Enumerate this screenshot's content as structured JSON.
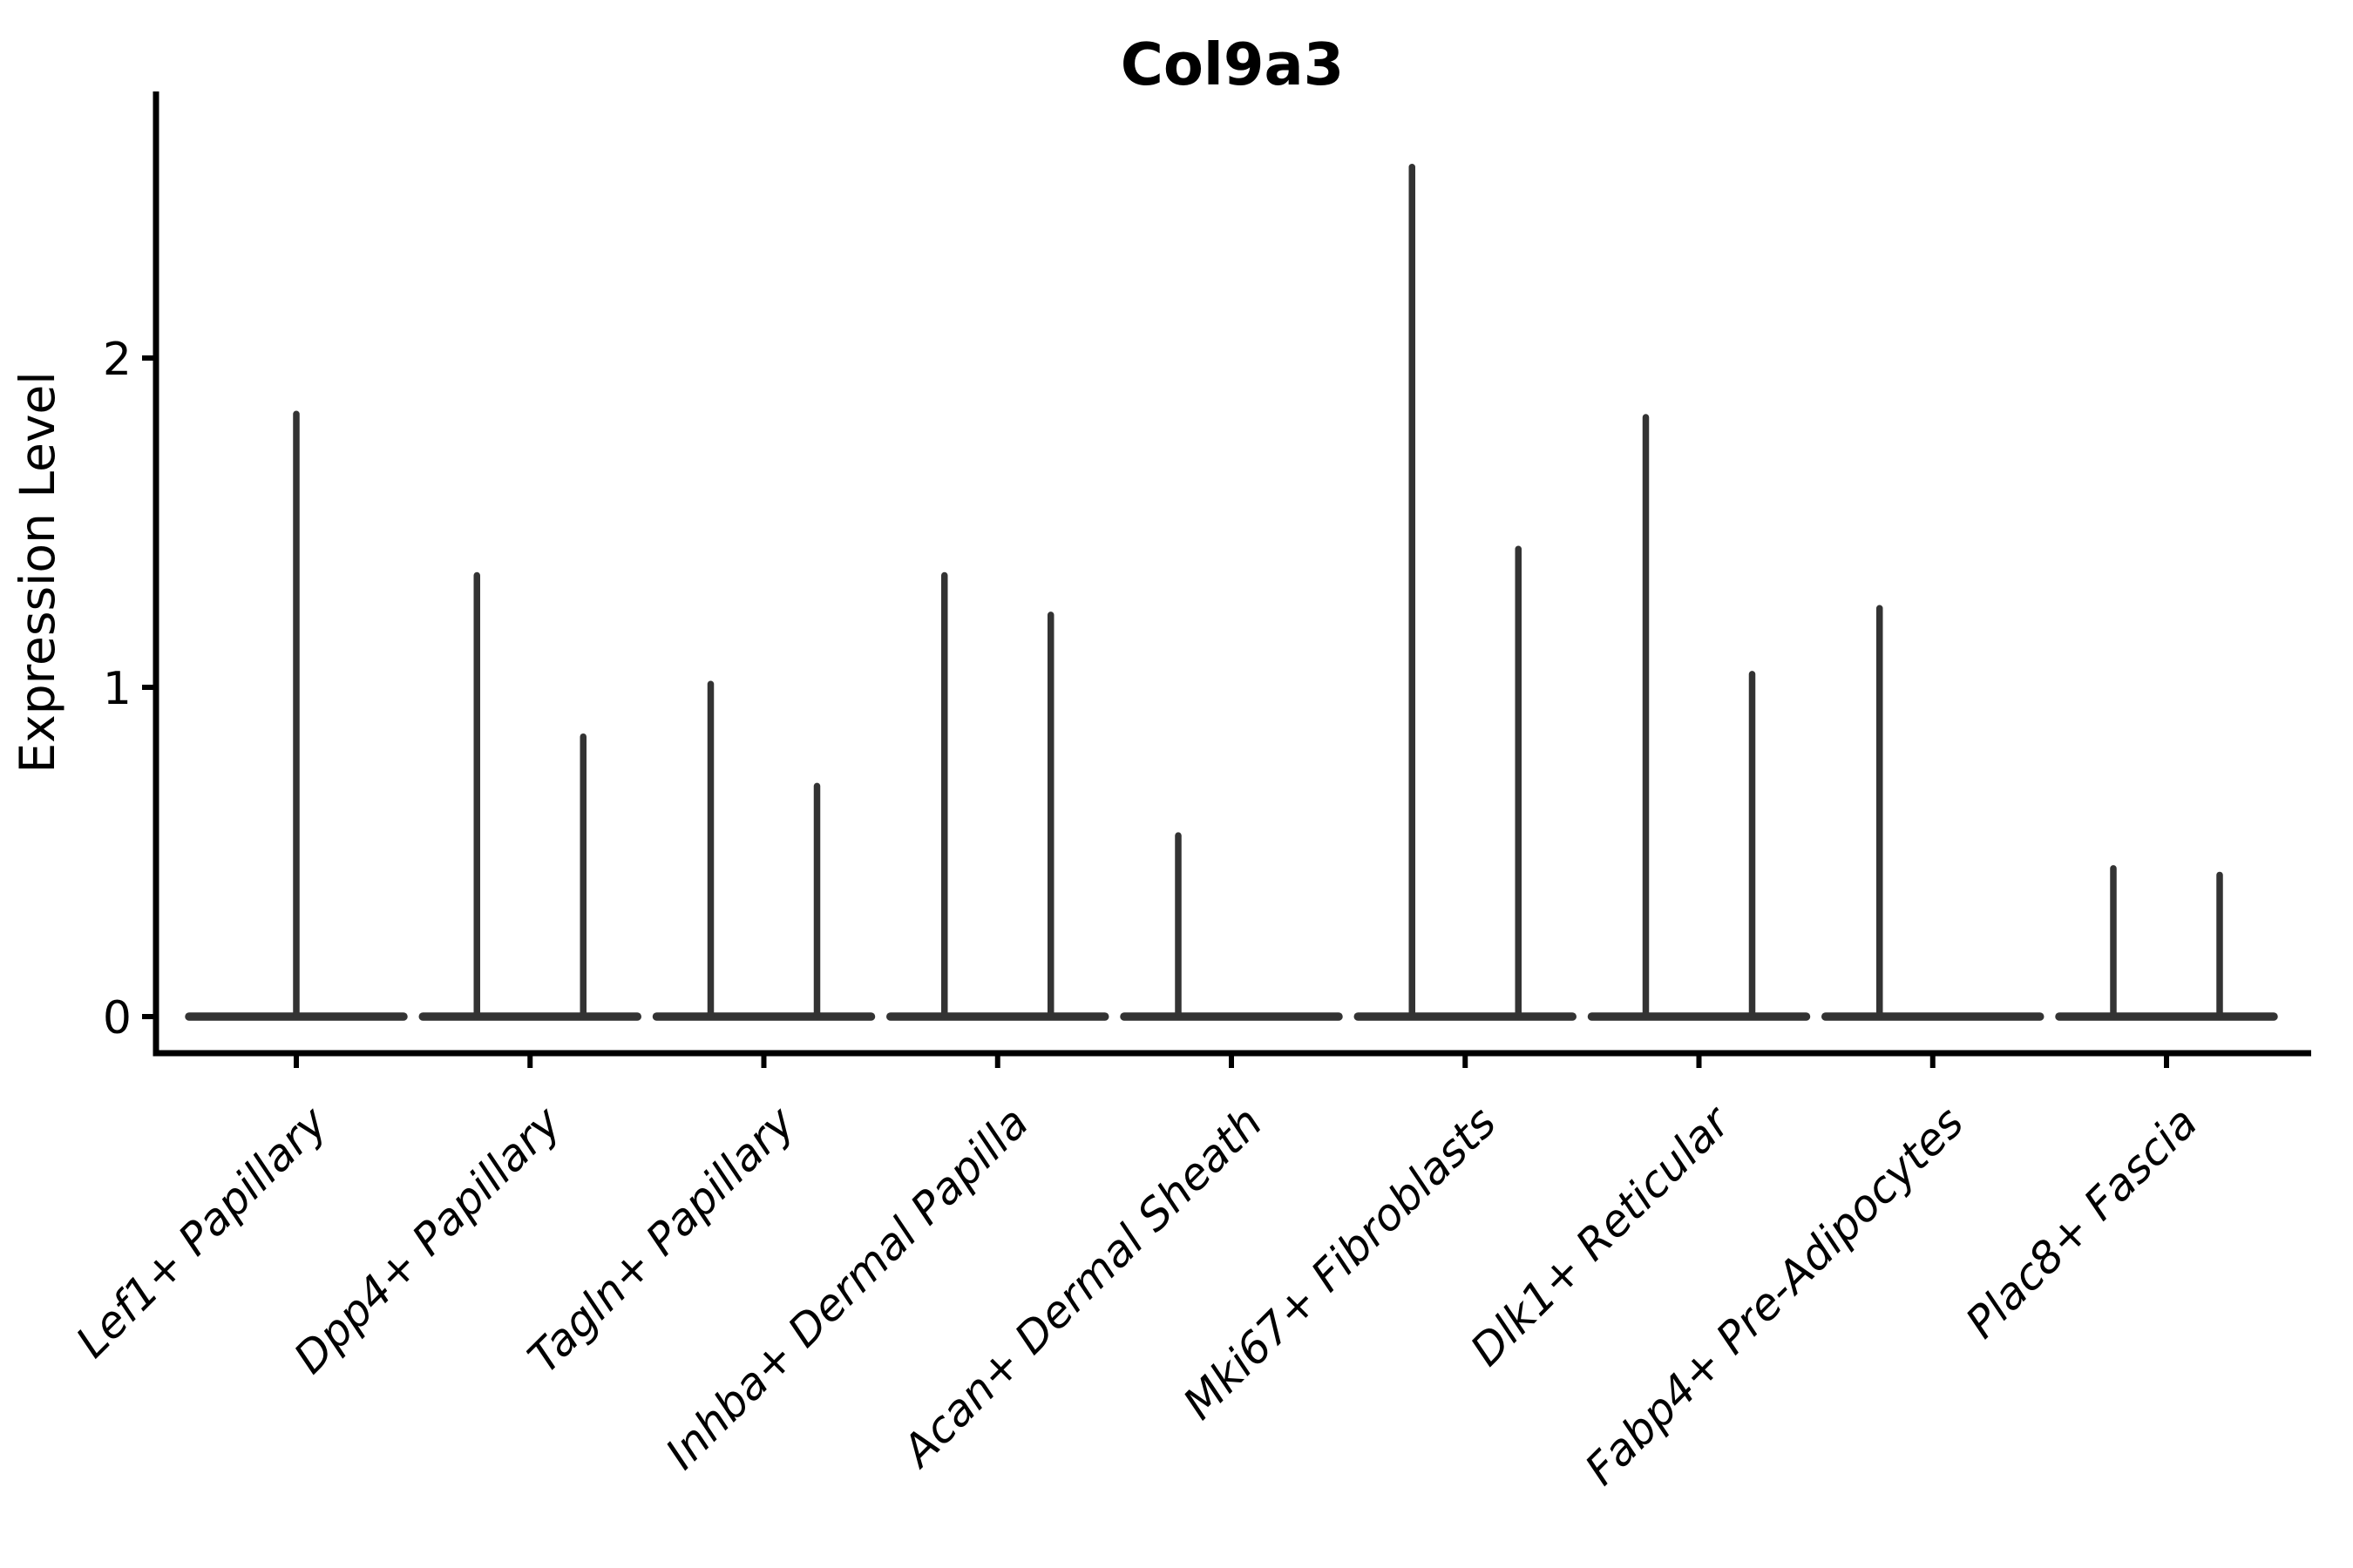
{
  "chart_data": {
    "type": "violin",
    "title": "Col9a3",
    "ylabel": "Expression Level",
    "xlabel": "",
    "ylim": [
      -0.11,
      2.81
    ],
    "yticks": [
      0,
      1,
      2
    ],
    "grid": false,
    "legend": "none",
    "x_tick_rotation": 45,
    "x_tick_style": "italic",
    "categories": [
      "Lef1+ Papillary",
      "Dpp4+ Papillary",
      "Tagln+ Papillary",
      "Inhba+ Dermal Papilla",
      "Acan+ Dermal Sheath",
      "Mki67+ Fibroblasts",
      "Dlk1+ Reticular",
      "Fabp4+ Pre-Adipocytes",
      "Plac8+ Fascia"
    ],
    "violins": [
      {
        "category": "Lef1+ Papillary",
        "baseline_value": 0,
        "spikes": [
          {
            "position": "center",
            "max": 1.83
          }
        ]
      },
      {
        "category": "Dpp4+ Papillary",
        "baseline_value": 0,
        "spikes": [
          {
            "position": "left",
            "max": 1.34
          },
          {
            "position": "right",
            "max": 0.85
          }
        ]
      },
      {
        "category": "Tagln+ Papillary",
        "baseline_value": 0,
        "spikes": [
          {
            "position": "left",
            "max": 1.01
          },
          {
            "position": "right",
            "max": 0.7
          }
        ]
      },
      {
        "category": "Inhba+ Dermal Papilla",
        "baseline_value": 0,
        "spikes": [
          {
            "position": "left",
            "max": 1.34
          },
          {
            "position": "right",
            "max": 1.22
          }
        ]
      },
      {
        "category": "Acan+ Dermal Sheath",
        "baseline_value": 0,
        "spikes": [
          {
            "position": "left",
            "max": 0.55
          }
        ]
      },
      {
        "category": "Mki67+ Fibroblasts",
        "baseline_value": 0,
        "spikes": [
          {
            "position": "left",
            "max": 2.58
          },
          {
            "position": "right",
            "max": 1.42
          }
        ]
      },
      {
        "category": "Dlk1+ Reticular",
        "baseline_value": 0,
        "spikes": [
          {
            "position": "left",
            "max": 1.82
          },
          {
            "position": "right",
            "max": 1.04
          }
        ]
      },
      {
        "category": "Fabp4+ Pre-Adipocytes",
        "baseline_value": 0,
        "spikes": [
          {
            "position": "left",
            "max": 1.24
          }
        ]
      },
      {
        "category": "Plac8+ Fascia",
        "baseline_value": 0,
        "spikes": [
          {
            "position": "left",
            "max": 0.45
          },
          {
            "position": "right",
            "max": 0.43
          }
        ]
      }
    ]
  },
  "colors": {
    "violin_line": "#333333",
    "axis": "#000000",
    "text": "#000000",
    "background": "#ffffff"
  }
}
